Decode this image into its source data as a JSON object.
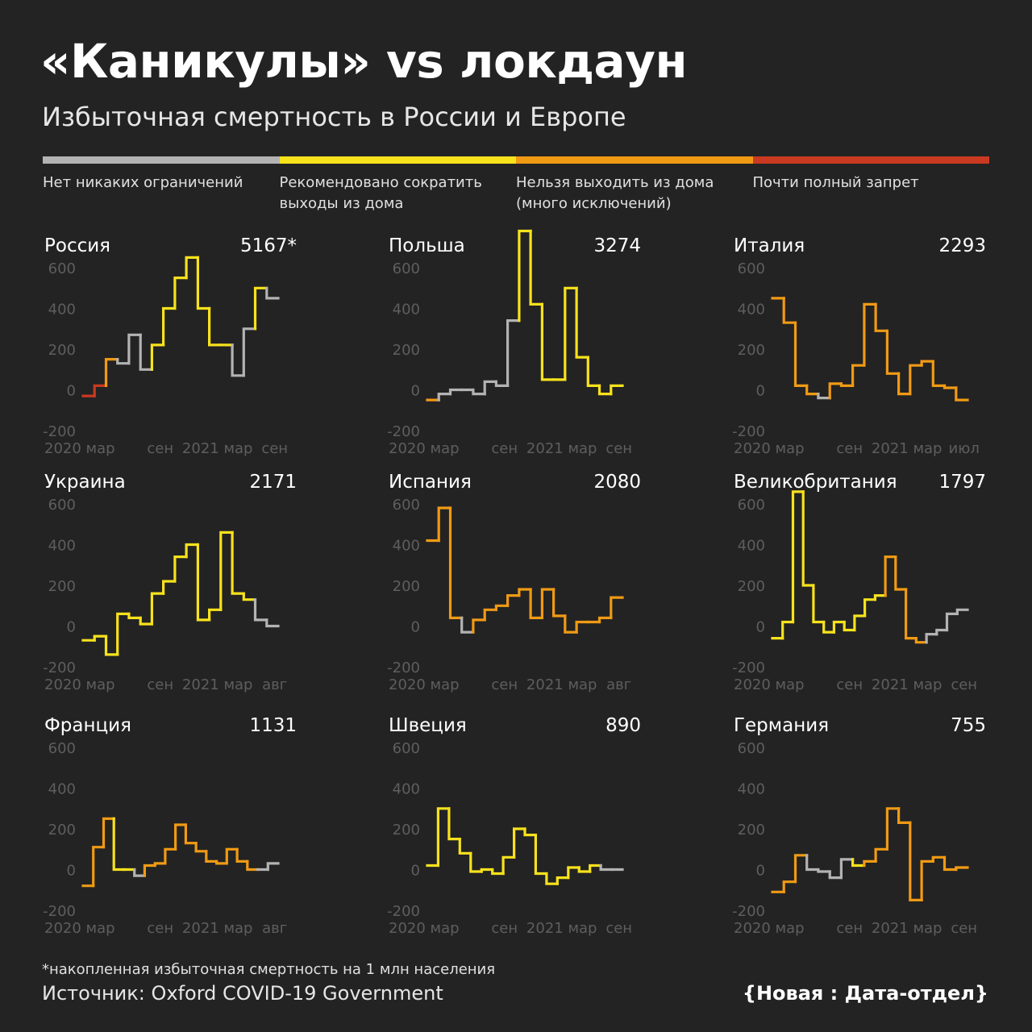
{
  "title": "«Каникулы» vs локдаун",
  "subtitle": "Избыточная смертность в России и Европе",
  "legend": [
    {
      "label": "Нет никаких ограничений",
      "color": "#b3b3b3"
    },
    {
      "label": "Рекомендовано сократить выходы из дома",
      "color": "#f7e21c"
    },
    {
      "label": "Нельзя выходить из дома (много исключений)",
      "color": "#f09a14"
    },
    {
      "label": "Почти полный запрет",
      "color": "#c93a20"
    }
  ],
  "footnote": "*накопленная избыточная смертность на 1 млн населения",
  "source": "Источник: Oxford COVID-19 Government",
  "brand": "{Новая : Дата-отдел}",
  "chart_data": [
    {
      "type": "line",
      "name": "Россия",
      "total": "5167*",
      "ylim": [
        -200,
        600
      ],
      "yticks": [
        -200,
        0,
        200,
        400,
        600
      ],
      "xlabels": [
        "2020 мар",
        "сен",
        "2021 мар",
        "сен"
      ],
      "steps": [
        -30,
        20,
        150,
        130,
        270,
        100,
        220,
        400,
        550,
        650,
        400,
        220,
        220,
        70,
        300,
        500,
        450
      ],
      "levels": [
        3,
        3,
        2,
        0,
        0,
        0,
        1,
        1,
        1,
        1,
        1,
        1,
        1,
        0,
        0,
        1,
        0
      ]
    },
    {
      "type": "line",
      "name": "Польша",
      "total": "3274",
      "ylim": [
        -200,
        600
      ],
      "yticks": [
        -200,
        0,
        200,
        400,
        600
      ],
      "xlabels": [
        "2020 мар",
        "сен",
        "2021 мар",
        "сен"
      ],
      "steps": [
        -50,
        -20,
        0,
        0,
        -20,
        40,
        20,
        340,
        780,
        420,
        50,
        50,
        500,
        160,
        20,
        -20,
        20
      ],
      "levels": [
        2,
        0,
        0,
        0,
        0,
        0,
        0,
        0,
        1,
        1,
        1,
        1,
        1,
        1,
        1,
        1,
        1
      ]
    },
    {
      "type": "line",
      "name": "Италия",
      "total": "2293",
      "ylim": [
        -200,
        600
      ],
      "yticks": [
        -200,
        0,
        200,
        400,
        600
      ],
      "xlabels": [
        "2020 мар",
        "сен",
        "2021 мар",
        "июл"
      ],
      "steps": [
        450,
        330,
        20,
        -20,
        -40,
        30,
        20,
        120,
        420,
        290,
        80,
        -20,
        120,
        140,
        20,
        10,
        -50
      ],
      "levels": [
        2,
        2,
        2,
        2,
        0,
        2,
        2,
        2,
        2,
        2,
        2,
        2,
        2,
        2,
        2,
        2,
        2
      ]
    },
    {
      "type": "line",
      "name": "Украина",
      "total": "2171",
      "ylim": [
        -200,
        600
      ],
      "yticks": [
        -200,
        0,
        200,
        400,
        600
      ],
      "xlabels": [
        "2020 мар",
        "сен",
        "2021 мар",
        "авг"
      ],
      "steps": [
        -70,
        -50,
        -140,
        60,
        40,
        10,
        160,
        220,
        340,
        400,
        30,
        80,
        460,
        160,
        130,
        30,
        0
      ],
      "levels": [
        1,
        1,
        1,
        1,
        1,
        1,
        1,
        1,
        1,
        1,
        1,
        1,
        1,
        1,
        1,
        0,
        0
      ]
    },
    {
      "type": "line",
      "name": "Испания",
      "total": "2080",
      "ylim": [
        -200,
        600
      ],
      "yticks": [
        -200,
        0,
        200,
        400,
        600
      ],
      "xlabels": [
        "2020 мар",
        "сен",
        "2021 мар",
        "авг"
      ],
      "steps": [
        420,
        580,
        40,
        -30,
        30,
        80,
        100,
        150,
        180,
        40,
        180,
        50,
        -30,
        20,
        20,
        40,
        140
      ],
      "levels": [
        2,
        2,
        2,
        0,
        2,
        2,
        2,
        2,
        2,
        2,
        2,
        2,
        2,
        2,
        2,
        2,
        2
      ]
    },
    {
      "type": "line",
      "name": "Великобритания",
      "total": "1797",
      "ylim": [
        -200,
        600
      ],
      "yticks": [
        -200,
        0,
        200,
        400,
        600
      ],
      "xlabels": [
        "2020 мар",
        "сен",
        "2021 мар",
        "сен"
      ],
      "steps": [
        -60,
        20,
        660,
        200,
        20,
        -30,
        20,
        -20,
        50,
        130,
        150,
        340,
        180,
        -60,
        -80,
        -40,
        -20,
        60,
        80
      ],
      "levels": [
        1,
        1,
        1,
        1,
        1,
        1,
        1,
        1,
        1,
        1,
        1,
        2,
        2,
        2,
        2,
        0,
        0,
        0,
        0
      ]
    },
    {
      "type": "line",
      "name": "Франция",
      "total": "1131",
      "ylim": [
        -200,
        600
      ],
      "yticks": [
        -200,
        0,
        200,
        400,
        600
      ],
      "xlabels": [
        "2020 мар",
        "сен",
        "2021 мар",
        "авг"
      ],
      "steps": [
        -80,
        110,
        250,
        0,
        0,
        -30,
        20,
        30,
        100,
        220,
        130,
        90,
        40,
        30,
        100,
        40,
        0,
        0,
        30
      ],
      "levels": [
        2,
        2,
        2,
        1,
        1,
        0,
        2,
        2,
        2,
        2,
        2,
        2,
        2,
        2,
        2,
        2,
        2,
        0,
        0
      ]
    },
    {
      "type": "line",
      "name": "Швеция",
      "total": "890",
      "ylim": [
        -200,
        600
      ],
      "yticks": [
        -200,
        0,
        200,
        400,
        600
      ],
      "xlabels": [
        "2020 мар",
        "сен",
        "2021 мар",
        "сен"
      ],
      "steps": [
        20,
        300,
        150,
        80,
        -10,
        0,
        -20,
        60,
        200,
        170,
        -20,
        -70,
        -40,
        10,
        -10,
        20,
        0,
        0
      ],
      "levels": [
        1,
        1,
        1,
        1,
        1,
        1,
        1,
        1,
        1,
        1,
        1,
        1,
        1,
        1,
        1,
        1,
        0,
        0
      ]
    },
    {
      "type": "line",
      "name": "Германия",
      "total": "755",
      "ylim": [
        -200,
        600
      ],
      "yticks": [
        -200,
        0,
        200,
        400,
        600
      ],
      "xlabels": [
        "2020 мар",
        "сен",
        "2021 мар",
        "сен"
      ],
      "steps": [
        -110,
        -60,
        70,
        0,
        -10,
        -40,
        50,
        20,
        40,
        100,
        300,
        230,
        -150,
        40,
        60,
        0,
        10
      ],
      "levels": [
        2,
        2,
        2,
        0,
        0,
        0,
        0,
        1,
        2,
        2,
        2,
        2,
        2,
        2,
        2,
        2,
        2
      ]
    }
  ]
}
